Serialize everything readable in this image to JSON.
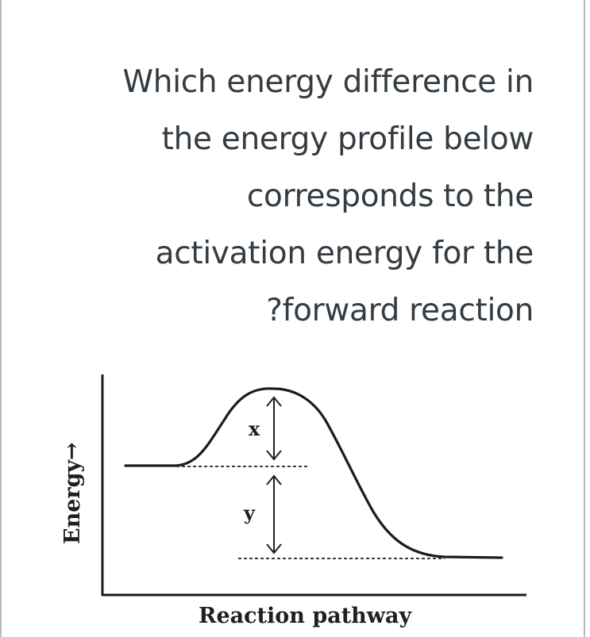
{
  "question": {
    "lines": [
      "Which energy difference in",
      "the energy profile below",
      "corresponds to the",
      "activation energy for the",
      "?forward reaction"
    ]
  },
  "diagram": {
    "y_axis_label": "Energy",
    "y_axis_arrow": "→",
    "x_axis_label": "Reaction pathway",
    "label_x": "x",
    "label_y": "y"
  }
}
